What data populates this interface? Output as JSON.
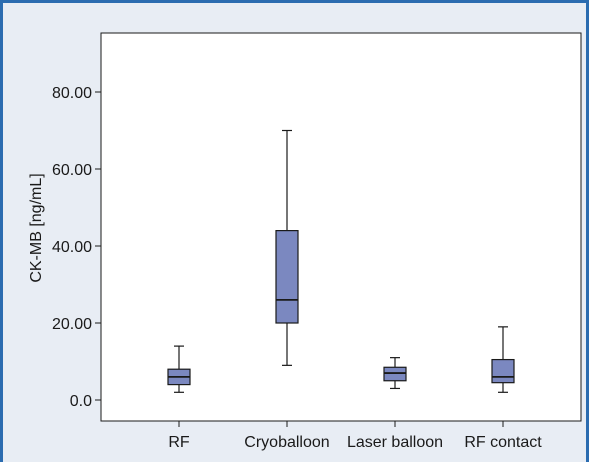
{
  "chart_data": {
    "type": "box",
    "title": "",
    "xlabel": "",
    "ylabel": "CK-MB [ng/mL]",
    "ylim": [
      -5.0,
      88.0
    ],
    "yticks": [
      0.0,
      20.0,
      40.0,
      60.0,
      80.0
    ],
    "ytick_labels": [
      "0.0",
      "20.00",
      "40.00",
      "60.00",
      "80.00"
    ],
    "grid": false,
    "categories": [
      "RF",
      "Cryoballoon",
      "Laser balloon",
      "RF contact"
    ],
    "boxes": [
      {
        "category": "RF",
        "min": 2.0,
        "q1": 4.0,
        "median": 6.0,
        "q3": 8.0,
        "max": 14.0
      },
      {
        "category": "Cryoballoon",
        "min": 9.0,
        "q1": 20.0,
        "median": 26.0,
        "q3": 44.0,
        "max": 70.0
      },
      {
        "category": "Laser balloon",
        "min": 3.0,
        "q1": 5.0,
        "median": 7.0,
        "q3": 8.5,
        "max": 11.0
      },
      {
        "category": "RF contact",
        "min": 2.0,
        "q1": 4.5,
        "median": 6.0,
        "q3": 10.5,
        "max": 19.0
      }
    ],
    "colors": {
      "box_fill": "#7b88c0",
      "box_stroke": "#1a1a1a",
      "frame_accent": "#2b6cb0",
      "background": "#e8edf4"
    }
  }
}
